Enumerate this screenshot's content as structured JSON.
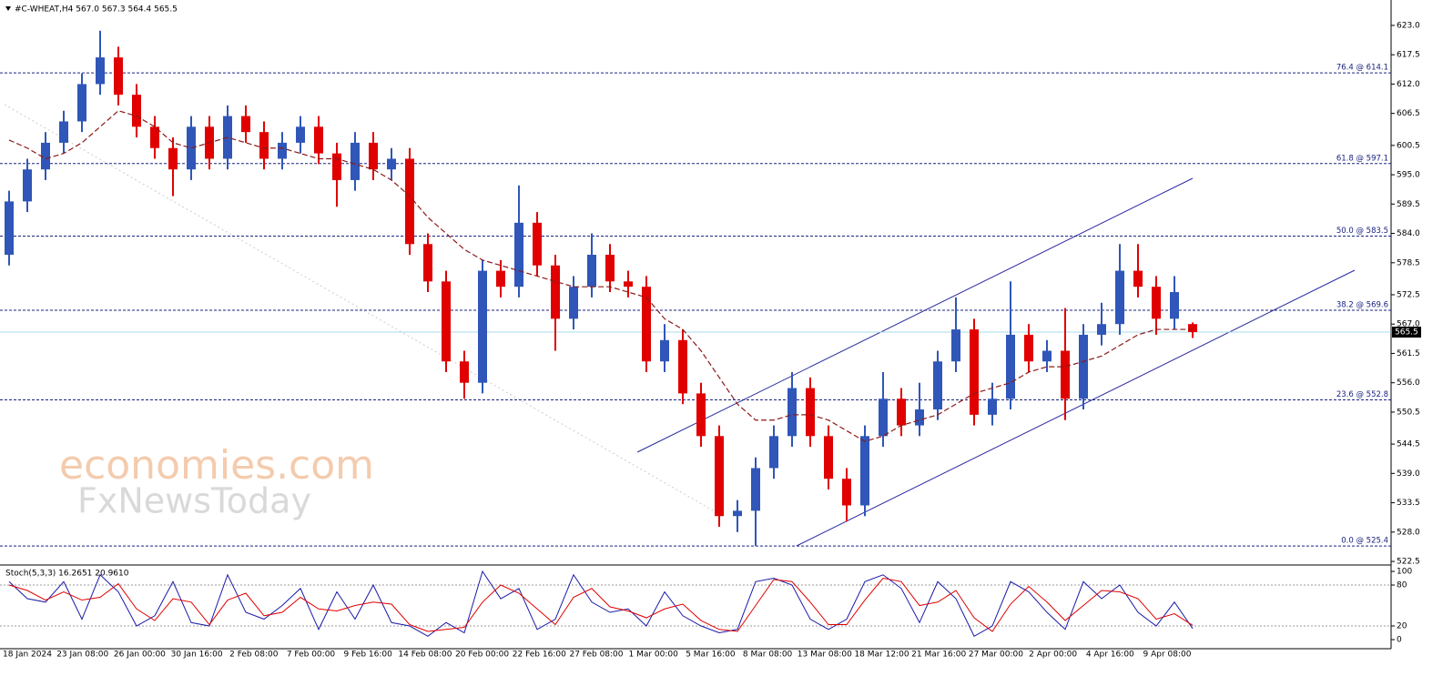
{
  "chart_data": [
    {
      "type": "candlestick",
      "title": "#C-WHEAT,H4  567.0 567.3 564.4 565.5",
      "watermark": [
        "economies.com",
        "FxNewsToday"
      ],
      "up_color": "#2f56b8",
      "down_color": "#e00000",
      "ma_color": "#8b1a1a",
      "open": [
        580,
        590,
        596,
        601,
        605,
        612,
        617,
        610,
        604,
        600,
        596,
        604,
        598,
        606,
        603,
        598,
        601,
        604,
        599,
        594,
        601,
        596,
        598,
        582,
        575,
        560,
        556,
        577,
        574,
        586,
        578,
        568,
        574,
        580,
        575,
        574,
        560,
        564,
        554,
        546,
        531,
        532,
        540,
        546,
        555,
        546,
        538,
        533,
        546,
        553,
        548,
        551,
        560,
        566,
        550,
        553,
        565,
        560,
        562,
        553,
        565,
        567,
        577,
        574,
        568,
        567
      ],
      "high": [
        592,
        598,
        603,
        607,
        614,
        622,
        619,
        612,
        606,
        602,
        606,
        606,
        608,
        608,
        605,
        603,
        606,
        606,
        601,
        603,
        603,
        600,
        600,
        584,
        577,
        562,
        579,
        579,
        593,
        588,
        580,
        576,
        584,
        582,
        577,
        576,
        567,
        566,
        556,
        548,
        534,
        542,
        548,
        558,
        557,
        548,
        540,
        548,
        558,
        555,
        556,
        562,
        572,
        568,
        556,
        575,
        567,
        564,
        570,
        567,
        571,
        582,
        582,
        576,
        576,
        567.3
      ],
      "low": [
        578,
        588,
        594,
        599,
        603,
        610,
        608,
        602,
        598,
        591,
        594,
        596,
        596,
        601,
        596,
        596,
        599,
        597,
        589,
        592,
        594,
        594,
        580,
        573,
        558,
        553,
        554,
        572,
        572,
        576,
        562,
        566,
        572,
        573,
        572,
        558,
        558,
        552,
        544,
        529,
        528,
        525.4,
        538,
        544,
        544,
        536,
        530,
        531,
        544,
        546,
        546,
        549,
        558,
        548,
        548,
        551,
        558,
        558,
        549,
        551,
        563,
        565,
        572,
        565,
        566,
        564.4
      ],
      "close": [
        590,
        596,
        601,
        605,
        612,
        617,
        610,
        604,
        600,
        596,
        604,
        598,
        606,
        603,
        598,
        601,
        604,
        599,
        594,
        601,
        596,
        598,
        582,
        575,
        560,
        556,
        577,
        574,
        586,
        578,
        568,
        574,
        580,
        575,
        574,
        560,
        564,
        554,
        546,
        531,
        532,
        540,
        546,
        555,
        546,
        538,
        533,
        546,
        553,
        548,
        551,
        560,
        566,
        550,
        553,
        565,
        560,
        562,
        553,
        565,
        567,
        577,
        574,
        568,
        573,
        565.5
      ],
      "ma": [
        601.5,
        600,
        598,
        599,
        601,
        604,
        607,
        606,
        604,
        601,
        600,
        601,
        602,
        601,
        600,
        600,
        599,
        598,
        598,
        597,
        596,
        594,
        591,
        587,
        584,
        581,
        579,
        578,
        577,
        576,
        575,
        574,
        574,
        574,
        573,
        572,
        568,
        566,
        562,
        557,
        552,
        549,
        549,
        550,
        550,
        549,
        547,
        545,
        546,
        548,
        549,
        550,
        552,
        554,
        555,
        556,
        558,
        559,
        559,
        560,
        561,
        563,
        565,
        566,
        566,
        566
      ],
      "current_price": 565.5,
      "fib_levels": [
        {
          "value": 614.1,
          "label": "76.4 @ 614.1"
        },
        {
          "value": 597.1,
          "label": "61.8 @ 597.1"
        },
        {
          "value": 583.5,
          "label": "50.0 @ 583.5"
        },
        {
          "value": 569.6,
          "label": "38.2 @ 569.6"
        },
        {
          "value": 552.8,
          "label": "23.6 @ 552.8"
        },
        {
          "value": 525.4,
          "label": "0.0 @ 525.4"
        }
      ],
      "ylim": [
        522,
        626.4
      ],
      "yticks": [
        {
          "value": 623,
          "label": "623.0"
        },
        617.5,
        {
          "value": 612,
          "label": "612.0"
        },
        606.5,
        600.5,
        {
          "value": 595,
          "label": "595.0"
        },
        589.5,
        {
          "value": 584,
          "label": "584.0"
        },
        578.5,
        572.5,
        {
          "value": 567,
          "label": "567.0"
        },
        561.5,
        {
          "value": 556,
          "label": "556.0"
        },
        550.5,
        544.5,
        {
          "value": 539,
          "label": "539.0"
        },
        533.5,
        {
          "value": 528,
          "label": "528.0"
        },
        522.5
      ],
      "x_labels": [
        "18 Jan 2024",
        "23 Jan 08:00",
        "26 Jan 00:00",
        "30 Jan 16:00",
        "2 Feb 08:00",
        "7 Feb 00:00",
        "9 Feb 16:00",
        "14 Feb 08:00",
        "20 Feb 00:00",
        "22 Feb 16:00",
        "27 Feb 08:00",
        "1 Mar 00:00",
        "5 Mar 16:00",
        "8 Mar 08:00",
        "13 Mar 08:00",
        "18 Mar 12:00",
        "21 Mar 16:00",
        "27 Mar 00:00",
        "2 Apr 00:00",
        "4 Apr 16:00",
        "9 Apr 08:00"
      ]
    },
    {
      "type": "line",
      "title": "Stoch(5,3,3) 16.2651 20.9610",
      "series": [
        {
          "color": "#1a1aa8",
          "values": [
            85,
            60,
            55,
            85,
            30,
            95,
            70,
            20,
            35,
            85,
            25,
            20,
            95,
            40,
            30,
            50,
            75,
            15,
            70,
            30,
            80,
            25,
            20,
            5,
            25,
            10,
            100,
            60,
            75,
            15,
            30,
            95,
            55,
            40,
            45,
            20,
            70,
            35,
            20,
            10,
            15,
            85,
            90,
            80,
            30,
            15,
            30,
            85,
            95,
            75,
            25,
            85,
            60,
            5,
            20,
            85,
            70,
            40,
            15,
            85,
            60,
            80,
            40,
            20,
            55,
            16.2651
          ]
        },
        {
          "color": "#e00000",
          "values": [
            80,
            72,
            58,
            70,
            58,
            62,
            82,
            45,
            28,
            60,
            55,
            22,
            58,
            68,
            35,
            40,
            62,
            45,
            42,
            50,
            55,
            52,
            22,
            12,
            15,
            18,
            55,
            80,
            68,
            45,
            22,
            62,
            75,
            48,
            42,
            32,
            45,
            52,
            28,
            15,
            12,
            50,
            88,
            85,
            55,
            22,
            22,
            58,
            90,
            85,
            50,
            55,
            72,
            32,
            12,
            52,
            78,
            55,
            28,
            50,
            72,
            70,
            60,
            30,
            38,
            20.961
          ]
        }
      ],
      "levels": [
        80,
        20
      ],
      "ylim": [
        -13.3,
        106.7
      ],
      "yticks": [
        100,
        80,
        20,
        0
      ]
    }
  ]
}
